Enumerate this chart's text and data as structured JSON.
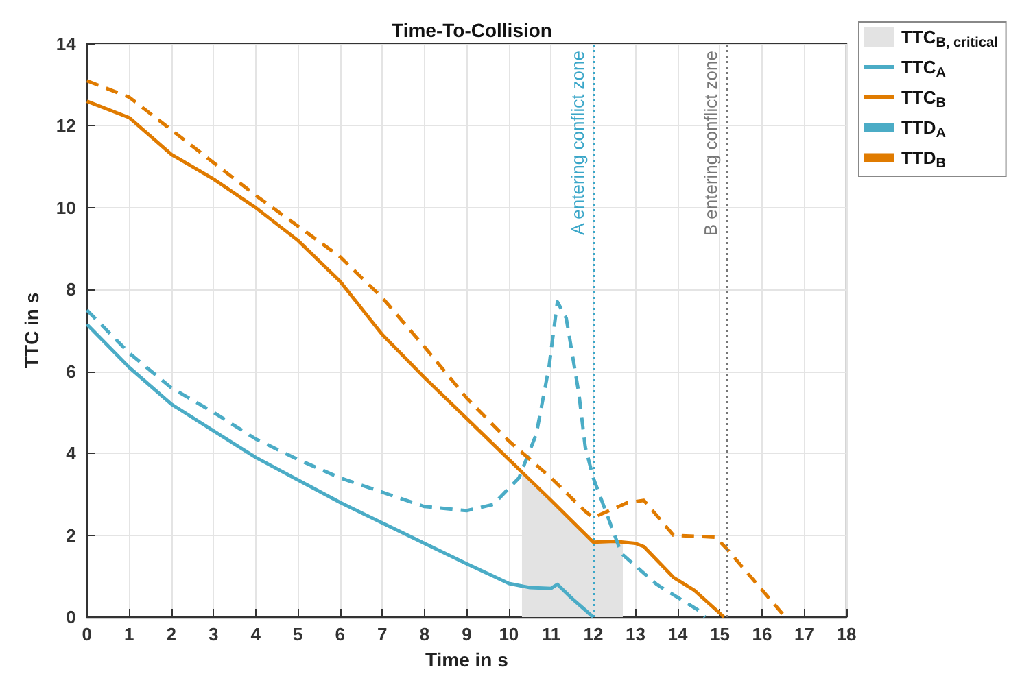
{
  "chart_data": {
    "type": "line",
    "title": "Time-To-Collision",
    "xlabel": "Time in s",
    "ylabel": "TTC in s",
    "xlim": [
      0,
      18
    ],
    "xticks": [
      0,
      1,
      2,
      3,
      4,
      5,
      6,
      7,
      8,
      9,
      10,
      11,
      12,
      13,
      14,
      15,
      16,
      17,
      18
    ],
    "ylim": [
      0,
      14
    ],
    "yticks": [
      0,
      2,
      4,
      6,
      8,
      10,
      12,
      14
    ],
    "grid": true,
    "legend": "top right",
    "marker": "none",
    "series": [
      {
        "name": "TTC$_{B, critical}$",
        "type": "area",
        "color": "#e3e3e3",
        "x": [
          10.31,
          11,
          12,
          12.7,
          12.7
        ],
        "values": [
          3.5,
          2.8,
          1.83,
          1.83,
          0
        ]
      },
      {
        "name": "TTC$_{A}$",
        "color": "#4bacc6",
        "line_style": "solid",
        "x": [
          0,
          1,
          2,
          3,
          4,
          5,
          6,
          7,
          8,
          9,
          9.63,
          10,
          10.5,
          11,
          11.15,
          11.5,
          12
        ],
        "values": [
          7.15,
          6.1,
          5.2,
          4.55,
          3.9,
          3.35,
          2.8,
          2.3,
          1.8,
          1.3,
          1.0,
          0.82,
          0.72,
          0.7,
          0.8,
          0.45,
          0
        ]
      },
      {
        "name": "TTC$_{B}$",
        "color": "#e07b00",
        "line_style": "solid",
        "x": [
          0,
          1,
          2,
          3,
          4,
          5,
          6,
          7,
          8,
          9,
          10,
          11,
          12,
          12.5,
          13,
          13.2,
          13.9,
          14.4,
          15.1
        ],
        "values": [
          12.6,
          12.2,
          11.3,
          10.7,
          10.0,
          9.2,
          8.2,
          6.9,
          5.85,
          4.85,
          3.85,
          2.85,
          1.83,
          1.85,
          1.8,
          1.72,
          0.97,
          0.65,
          0
        ]
      },
      {
        "name": "TTD$_{A}$",
        "color": "#4bacc6",
        "line_style": "dashed",
        "x": [
          0,
          1,
          2,
          3,
          4,
          5,
          6,
          7,
          8,
          9,
          9.63,
          10.24,
          10.65,
          10.95,
          11.15,
          11.36,
          11.66,
          11.81,
          12.0,
          12.67,
          13.5,
          14.5,
          14.65
        ],
        "values": [
          7.5,
          6.45,
          5.6,
          5.0,
          4.35,
          3.85,
          3.4,
          3.05,
          2.7,
          2.6,
          2.75,
          3.4,
          4.47,
          6.1,
          7.7,
          7.3,
          5.45,
          4.15,
          3.4,
          1.55,
          0.8,
          0.16,
          0
        ]
      },
      {
        "name": "TTD$_{B}$",
        "color": "#e07b00",
        "line_style": "dashed",
        "x": [
          0,
          1,
          2,
          3,
          4,
          5,
          6,
          7,
          8,
          9,
          10,
          11,
          11.8,
          12.0,
          12.8,
          13.2,
          13.9,
          14.9,
          15.17,
          16.55
        ],
        "values": [
          13.1,
          12.7,
          11.9,
          11.1,
          10.3,
          9.55,
          8.8,
          7.8,
          6.6,
          5.35,
          4.3,
          3.4,
          2.59,
          2.43,
          2.79,
          2.85,
          2.0,
          1.95,
          1.66,
          0
        ]
      }
    ],
    "ref_lines": [
      {
        "axis": "x",
        "value": 12,
        "label": "A entering conflict zone",
        "color": "#3aa6c8",
        "line_style": "dotted"
      },
      {
        "axis": "x",
        "value": 15.15,
        "label": "B entering conflict zone",
        "color": "#777777",
        "line_style": "dotted"
      }
    ]
  }
}
